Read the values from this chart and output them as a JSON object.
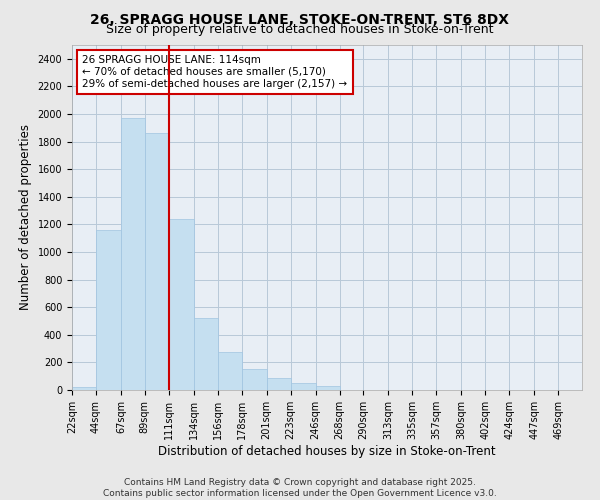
{
  "title1": "26, SPRAGG HOUSE LANE, STOKE-ON-TRENT, ST6 8DX",
  "title2": "Size of property relative to detached houses in Stoke-on-Trent",
  "xlabel": "Distribution of detached houses by size in Stoke-on-Trent",
  "ylabel": "Number of detached properties",
  "footnote1": "Contains HM Land Registry data © Crown copyright and database right 2025.",
  "footnote2": "Contains public sector information licensed under the Open Government Licence v3.0.",
  "annotation_line1": "26 SPRAGG HOUSE LANE: 114sqm",
  "annotation_line2": "← 70% of detached houses are smaller (5,170)",
  "annotation_line3": "29% of semi-detached houses are larger (2,157) →",
  "bar_labels": [
    "22sqm",
    "44sqm",
    "67sqm",
    "89sqm",
    "111sqm",
    "134sqm",
    "156sqm",
    "178sqm",
    "201sqm",
    "223sqm",
    "246sqm",
    "268sqm",
    "290sqm",
    "313sqm",
    "335sqm",
    "357sqm",
    "380sqm",
    "402sqm",
    "424sqm",
    "447sqm",
    "469sqm"
  ],
  "bar_values": [
    25,
    1160,
    1970,
    1860,
    1240,
    520,
    275,
    150,
    85,
    50,
    30,
    0,
    0,
    0,
    0,
    0,
    0,
    0,
    0,
    0,
    0
  ],
  "bar_edges": [
    22,
    44,
    67,
    89,
    111,
    134,
    156,
    178,
    201,
    223,
    246,
    268,
    290,
    313,
    335,
    357,
    380,
    402,
    424,
    447,
    469,
    491
  ],
  "bar_color": "#c5dff0",
  "bar_edgecolor": "#a0c4e0",
  "vline_x": 111,
  "vline_color": "#cc0000",
  "annotation_box_color": "#cc0000",
  "ylim": [
    0,
    2500
  ],
  "yticks": [
    0,
    200,
    400,
    600,
    800,
    1000,
    1200,
    1400,
    1600,
    1800,
    2000,
    2200,
    2400
  ],
  "bg_color": "#e8e8e8",
  "plot_bg_color": "#e8eef5",
  "grid_color": "#b8c8d8",
  "title_fontsize": 10,
  "subtitle_fontsize": 9,
  "axis_label_fontsize": 8.5,
  "tick_fontsize": 7,
  "annotation_fontsize": 7.5,
  "footnote_fontsize": 6.5
}
